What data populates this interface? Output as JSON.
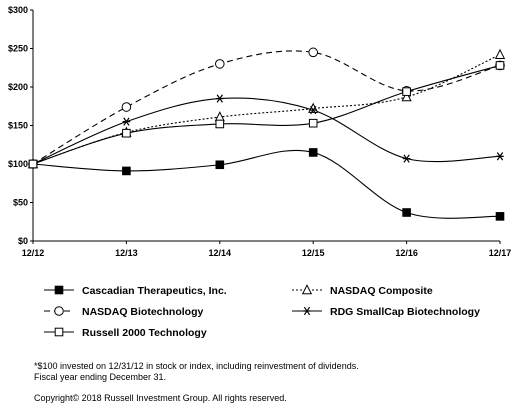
{
  "chart_data": {
    "type": "line",
    "x": [
      "12/12",
      "12/13",
      "12/14",
      "12/15",
      "12/16",
      "12/17"
    ],
    "yticks": [
      "$0",
      "$50",
      "$100",
      "$150",
      "$200",
      "$250",
      "$300"
    ],
    "ylim": [
      0,
      300
    ],
    "grid": false,
    "legend_placement": "bottom",
    "series": [
      {
        "name": "Cascadian Therapeutics, Inc.",
        "values": [
          100,
          91,
          99,
          115,
          37,
          32
        ],
        "marker": "filled-square",
        "dash": "solid",
        "color": "#000000"
      },
      {
        "name": "NASDAQ Composite",
        "values": [
          100,
          141,
          161,
          172,
          187,
          242
        ],
        "marker": "open-triangle",
        "dash": "dotted",
        "color": "#000000"
      },
      {
        "name": "NASDAQ Biotechnology",
        "values": [
          100,
          174,
          230,
          245,
          195,
          228
        ],
        "marker": "open-circle",
        "dash": "dashed",
        "color": "#000000"
      },
      {
        "name": "RDG SmallCap Biotechnology",
        "values": [
          100,
          155,
          185,
          170,
          107,
          110
        ],
        "marker": "asterisk",
        "dash": "solid",
        "color": "#000000"
      },
      {
        "name": "Russell 2000 Technology",
        "values": [
          100,
          140,
          152,
          153,
          194,
          228
        ],
        "marker": "open-square",
        "dash": "solid",
        "color": "#000000"
      }
    ]
  },
  "footnote": {
    "line1": "*$100 invested on 12/31/12 in stock or index, including reinvestment of dividends.",
    "line2": "Fiscal year ending December 31.",
    "copyright": "Copyright© 2018 Russell Investment Group. All rights reserved."
  }
}
